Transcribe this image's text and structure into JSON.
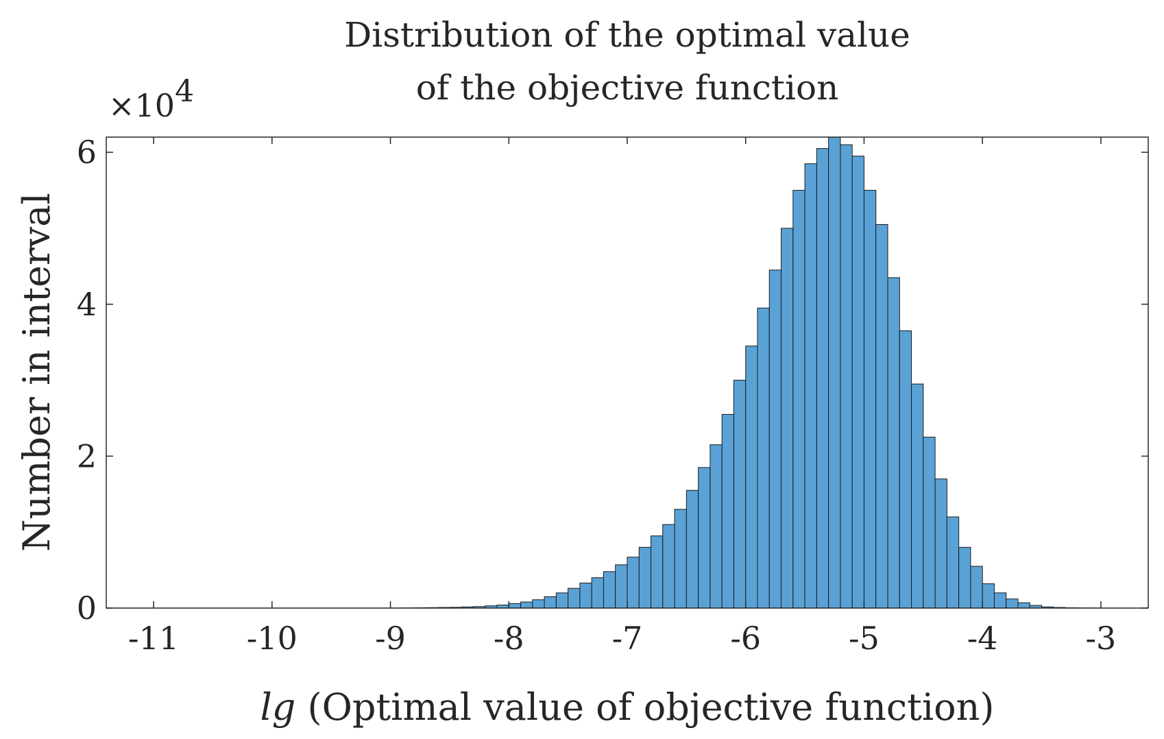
{
  "chart_data": {
    "type": "bar",
    "title": [
      "Distribution of the optimal value",
      "of the objective function"
    ],
    "xlabel_italic": "lg",
    "xlabel_rest": " (Optimal value of objective function)",
    "ylabel": "Number in interval",
    "y_exponent_prefix": "×10",
    "y_exponent_power": "4",
    "y_scale": 10000,
    "xlim": [
      -11.4,
      -2.6
    ],
    "ylim": [
      0,
      62000
    ],
    "xticks": [
      "-11",
      "-10",
      "-9",
      "-8",
      "-7",
      "-6",
      "-5",
      "-4",
      "-3"
    ],
    "xtick_values": [
      -11,
      -10,
      -9,
      -8,
      -7,
      -6,
      -5,
      -4,
      -3
    ],
    "yticks": [
      "0",
      "2",
      "4",
      "6"
    ],
    "ytick_values": [
      0,
      20000,
      40000,
      60000
    ],
    "bar_color": "#5aa2d6",
    "edge_color": "#1a1a1a",
    "bin_width": 0.1,
    "bin_start": -11.0,
    "values": [
      0,
      0,
      0,
      0,
      0,
      0,
      0,
      0,
      0,
      0,
      0,
      0,
      0,
      0,
      0,
      0,
      0,
      0,
      0,
      0,
      10,
      20,
      40,
      60,
      80,
      100,
      150,
      200,
      300,
      400,
      600,
      800,
      1100,
      1500,
      2000,
      2600,
      3300,
      4000,
      4800,
      5700,
      6700,
      8000,
      9500,
      11000,
      13000,
      15500,
      18500,
      21500,
      25500,
      30000,
      34500,
      39500,
      44500,
      50000,
      55000,
      58500,
      60500,
      62000,
      61000,
      59500,
      55000,
      50500,
      43500,
      36500,
      29500,
      22500,
      17000,
      12000,
      8000,
      5500,
      3200,
      2000,
      1200,
      700,
      350,
      150,
      80,
      40,
      20,
      10
    ]
  }
}
